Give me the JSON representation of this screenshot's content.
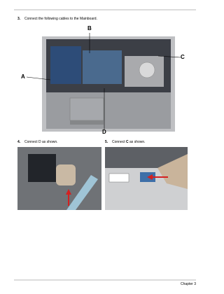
{
  "steps": [
    {
      "number": "3.",
      "text": "Connect the following cables to the Mainboard.",
      "labels": [
        "A",
        "B",
        "C",
        "D"
      ]
    },
    {
      "number": "4.",
      "text": "Connect D as shown."
    },
    {
      "number": "5.",
      "text_before": "Connect",
      "bold": "C",
      "text_after": "as shown."
    }
  ],
  "footer": {
    "chapter": "Chapter 3"
  }
}
